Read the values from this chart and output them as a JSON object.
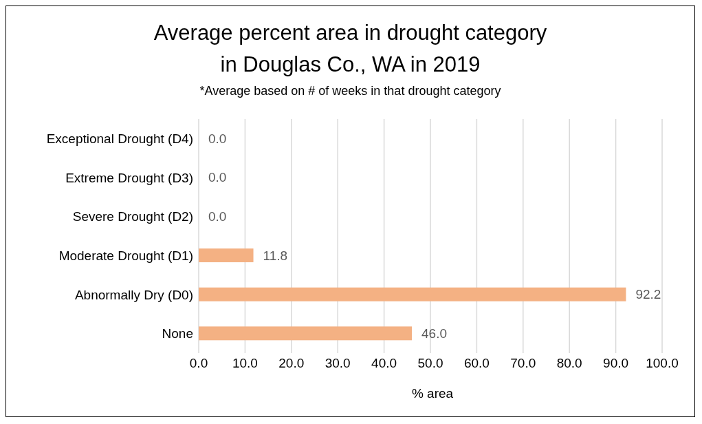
{
  "chart_data": {
    "type": "bar",
    "orientation": "horizontal",
    "title": "Average percent area in drought category\nin Douglas Co., WA in 2019",
    "subtitle": "*Average based on # of weeks in that drought category",
    "xlabel": "% area",
    "categories": [
      "Exceptional Drought (D4)",
      "Extreme Drought (D3)",
      "Severe Drought (D2)",
      "Moderate Drought (D1)",
      "Abnormally Dry (D0)",
      "None"
    ],
    "values": [
      0,
      0,
      0,
      11.8,
      92.2,
      46.0
    ],
    "value_labels": [
      "0.0",
      "0.0",
      "0.0",
      "11.8",
      "92.2",
      "46.0"
    ],
    "color": "#f4b183",
    "xlim": [
      0,
      100
    ],
    "xticks": [
      {
        "value": 0,
        "label": "0.0"
      },
      {
        "value": 10,
        "label": "10.0"
      },
      {
        "value": 20,
        "label": "20.0"
      },
      {
        "value": 30,
        "label": "30.0"
      },
      {
        "value": 40,
        "label": "40.0"
      },
      {
        "value": 50,
        "label": "50.0"
      },
      {
        "value": 60,
        "label": "60.0"
      },
      {
        "value": 70,
        "label": "70.0"
      },
      {
        "value": 80,
        "label": "80.0"
      },
      {
        "value": 90,
        "label": "90.0"
      },
      {
        "value": 100,
        "label": "100.0"
      }
    ],
    "grid": "x",
    "legend": false
  }
}
